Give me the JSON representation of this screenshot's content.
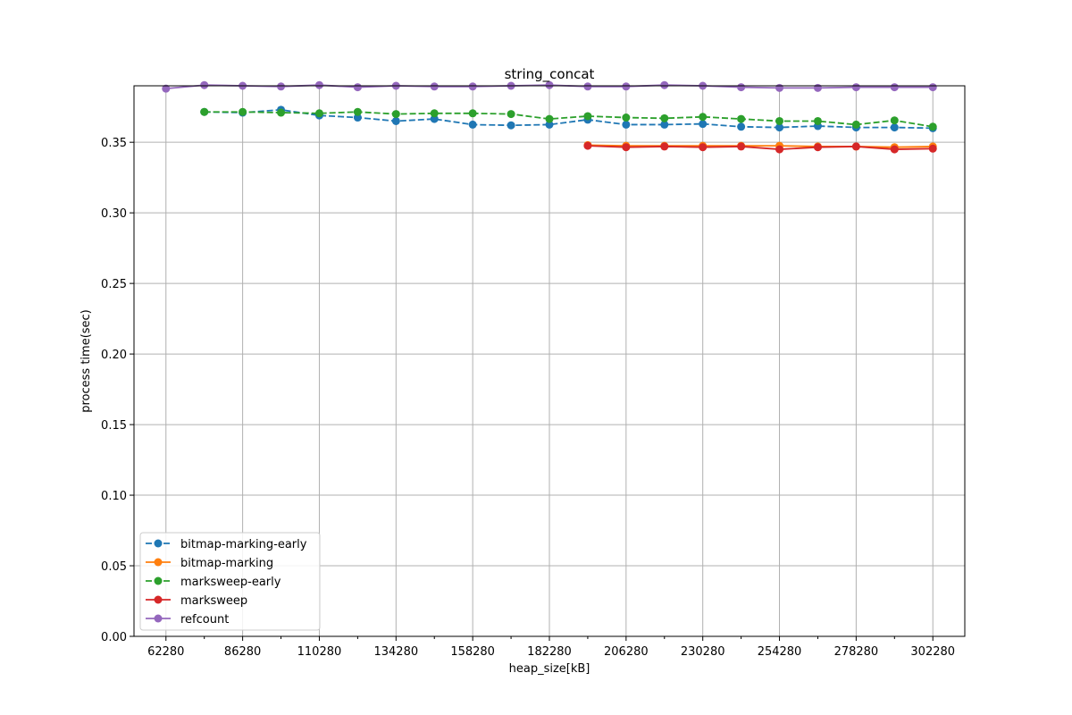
{
  "chart_data": {
    "type": "line",
    "title": "string_concat",
    "xlabel": "heap_size[kB]",
    "ylabel": "process time(sec)",
    "xlim": [
      52280,
      312280
    ],
    "ylim": [
      0.0,
      0.39
    ],
    "x_tick_labels": [
      "62280",
      "86280",
      "110280",
      "134280",
      "158280",
      "182280",
      "206280",
      "230280",
      "254280",
      "278280",
      "302280"
    ],
    "x_minor_ticks": [
      74280,
      98280,
      122280,
      146280,
      170280,
      194280,
      218280,
      242280,
      266280,
      290280
    ],
    "y_tick_labels": [
      "0.00",
      "0.05",
      "0.10",
      "0.15",
      "0.20",
      "0.25",
      "0.30",
      "0.35"
    ],
    "grid": true,
    "legend_position": "lower-left",
    "series": [
      {
        "name": "bitmap-marking-early",
        "color": "#1f77b4",
        "dashed": true,
        "x": [
          74280,
          86280,
          98280,
          110280,
          122280,
          134280,
          146280,
          158280,
          170280,
          182280,
          194280,
          206280,
          218280,
          230280,
          242280,
          254280,
          266280,
          278280,
          290280,
          302280
        ],
        "y": [
          0.3715,
          0.371,
          0.373,
          0.369,
          0.3675,
          0.365,
          0.3665,
          0.3625,
          0.362,
          0.3625,
          0.366,
          0.3625,
          0.3625,
          0.363,
          0.361,
          0.3605,
          0.3615,
          0.3605,
          0.3605,
          0.36
        ]
      },
      {
        "name": "bitmap-marking",
        "color": "#ff7f0e",
        "dashed": false,
        "x": [
          194280,
          206280,
          218280,
          230280,
          242280,
          254280,
          266280,
          278280,
          290280,
          302280
        ],
        "y": [
          0.348,
          0.3475,
          0.3475,
          0.3475,
          0.3475,
          0.3475,
          0.347,
          0.347,
          0.3465,
          0.347
        ]
      },
      {
        "name": "marksweep-early",
        "color": "#2ca02c",
        "dashed": true,
        "x": [
          74280,
          86280,
          98280,
          110280,
          122280,
          134280,
          146280,
          158280,
          170280,
          182280,
          194280,
          206280,
          218280,
          230280,
          242280,
          254280,
          266280,
          278280,
          290280,
          302280
        ],
        "y": [
          0.3715,
          0.3715,
          0.371,
          0.3705,
          0.3715,
          0.37,
          0.3705,
          0.3705,
          0.37,
          0.3665,
          0.3685,
          0.3675,
          0.367,
          0.368,
          0.3665,
          0.365,
          0.365,
          0.3625,
          0.3655,
          0.361
        ]
      },
      {
        "name": "marksweep",
        "color": "#d62728",
        "dashed": false,
        "x": [
          194280,
          206280,
          218280,
          230280,
          242280,
          254280,
          266280,
          278280,
          290280,
          302280
        ],
        "y": [
          0.3475,
          0.3465,
          0.347,
          0.3465,
          0.347,
          0.345,
          0.3465,
          0.347,
          0.345,
          0.3455
        ]
      },
      {
        "name": "refcount",
        "color": "#9467bd",
        "dashed": false,
        "x": [
          62280,
          74280,
          86280,
          98280,
          110280,
          122280,
          134280,
          146280,
          158280,
          170280,
          182280,
          194280,
          206280,
          218280,
          230280,
          242280,
          254280,
          266280,
          278280,
          290280,
          302280
        ],
        "y": [
          0.388,
          0.3905,
          0.39,
          0.3895,
          0.3905,
          0.389,
          0.39,
          0.3895,
          0.3895,
          0.39,
          0.3905,
          0.3895,
          0.3895,
          0.3905,
          0.39,
          0.389,
          0.3885,
          0.3885,
          0.389,
          0.389,
          0.389
        ]
      }
    ]
  }
}
